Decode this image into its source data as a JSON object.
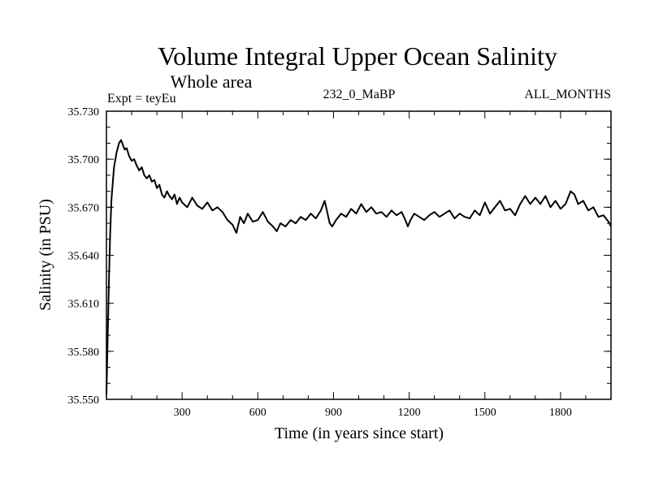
{
  "chart_data": {
    "type": "line",
    "title": "Volume Integral Upper Ocean Salinity",
    "subtitle": "Whole area",
    "experiment_label": "Expt = teyEu",
    "period_label": "232_0_MaBP",
    "months_label": "ALL_MONTHS",
    "xlabel": "Time (in years since start)",
    "ylabel": "Salinity (in PSU)",
    "xlim": [
      0,
      2000
    ],
    "ylim": [
      35.55,
      35.73
    ],
    "xticks": [
      300,
      600,
      900,
      1200,
      1500,
      1800
    ],
    "xtick_labels": [
      "300",
      "600",
      "900",
      "1200",
      "1500",
      "1800"
    ],
    "yticks": [
      35.55,
      35.58,
      35.61,
      35.64,
      35.67,
      35.7,
      35.73
    ],
    "ytick_labels": [
      "35.550",
      "35.580",
      "35.610",
      "35.640",
      "35.670",
      "35.700",
      "35.730"
    ],
    "grid": false,
    "series": [
      {
        "name": "Salinity",
        "x": [
          0,
          5,
          10,
          15,
          20,
          30,
          40,
          50,
          58,
          65,
          72,
          80,
          90,
          100,
          110,
          120,
          130,
          140,
          150,
          160,
          170,
          180,
          190,
          200,
          210,
          220,
          230,
          240,
          250,
          260,
          270,
          280,
          290,
          300,
          320,
          340,
          360,
          380,
          400,
          420,
          440,
          460,
          480,
          500,
          515,
          530,
          545,
          560,
          580,
          600,
          620,
          640,
          660,
          675,
          690,
          710,
          730,
          750,
          770,
          790,
          810,
          830,
          850,
          865,
          875,
          885,
          895,
          910,
          930,
          950,
          970,
          990,
          1010,
          1030,
          1050,
          1070,
          1090,
          1110,
          1130,
          1150,
          1170,
          1185,
          1195,
          1205,
          1220,
          1240,
          1260,
          1280,
          1300,
          1320,
          1340,
          1360,
          1380,
          1400,
          1420,
          1440,
          1460,
          1480,
          1500,
          1520,
          1540,
          1560,
          1580,
          1600,
          1620,
          1640,
          1660,
          1680,
          1700,
          1720,
          1740,
          1760,
          1780,
          1800,
          1820,
          1840,
          1855,
          1870,
          1890,
          1910,
          1930,
          1950,
          1970,
          1990,
          2000
        ],
        "values": [
          35.553,
          35.59,
          35.625,
          35.655,
          35.675,
          35.695,
          35.704,
          35.71,
          35.712,
          35.709,
          35.706,
          35.707,
          35.702,
          35.699,
          35.7,
          35.696,
          35.693,
          35.695,
          35.69,
          35.688,
          35.69,
          35.686,
          35.687,
          35.682,
          35.684,
          35.678,
          35.676,
          35.68,
          35.677,
          35.675,
          35.678,
          35.672,
          35.676,
          35.673,
          35.67,
          35.676,
          35.671,
          35.669,
          35.673,
          35.668,
          35.67,
          35.667,
          35.662,
          35.659,
          35.654,
          35.664,
          35.66,
          35.666,
          35.661,
          35.662,
          35.667,
          35.661,
          35.658,
          35.655,
          35.66,
          35.658,
          35.662,
          35.66,
          35.664,
          35.662,
          35.666,
          35.663,
          35.668,
          35.674,
          35.667,
          35.66,
          35.658,
          35.662,
          35.666,
          35.664,
          35.669,
          35.666,
          35.672,
          35.667,
          35.67,
          35.666,
          35.667,
          35.664,
          35.668,
          35.665,
          35.667,
          35.662,
          35.658,
          35.662,
          35.666,
          35.664,
          35.662,
          35.665,
          35.667,
          35.664,
          35.666,
          35.668,
          35.663,
          35.666,
          35.664,
          35.663,
          35.668,
          35.665,
          35.673,
          35.666,
          35.67,
          35.674,
          35.668,
          35.669,
          35.665,
          35.672,
          35.677,
          35.672,
          35.676,
          35.672,
          35.677,
          35.67,
          35.674,
          35.669,
          35.672,
          35.68,
          35.678,
          35.672,
          35.674,
          35.668,
          35.67,
          35.664,
          35.665,
          35.661,
          35.658
        ]
      }
    ]
  }
}
